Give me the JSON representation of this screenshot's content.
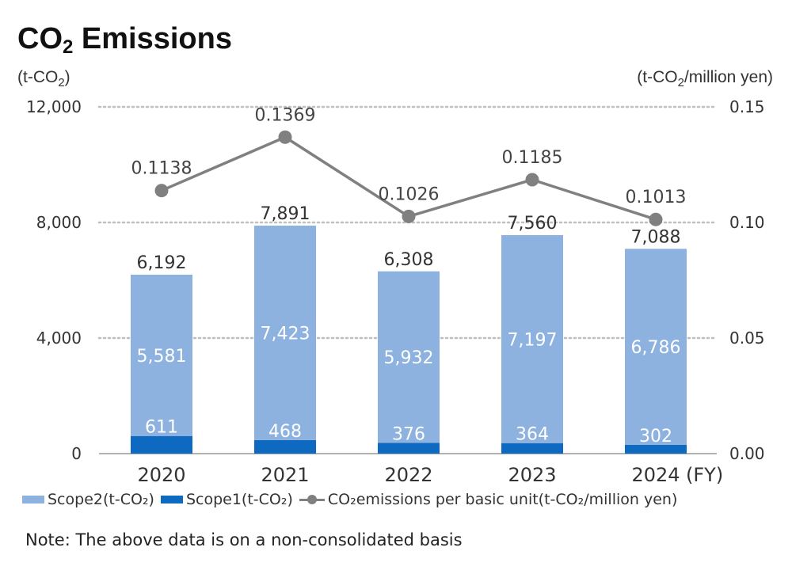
{
  "title": {
    "prefix": "CO",
    "sub": "2",
    "suffix": " Emissions"
  },
  "units": {
    "left": {
      "prefix": "(t-CO",
      "sub": "2",
      "suffix": ")"
    },
    "right": {
      "prefix": "(t-CO",
      "sub": "2",
      "suffix": "/million yen)"
    }
  },
  "legend": {
    "scope2": "Scope2(t-CO₂)",
    "scope1": "Scope1(t-CO₂)",
    "intensity": "CO₂emissions per basic unit(t-CO₂/million yen)"
  },
  "note": "Note: The above data is on a non-consolidated basis",
  "colors": {
    "scope2": "#8DB2E0",
    "scope1": "#0E6AC0",
    "line": "#808080",
    "grid": "#BFBFBF"
  },
  "chart_data": {
    "type": "bar",
    "stacked": true,
    "categories": [
      "2020",
      "2021",
      "2022",
      "2023",
      "2024"
    ],
    "x_unit_label": "(FY)",
    "series": [
      {
        "name": "Scope1(t-CO₂)",
        "values": [
          611,
          468,
          376,
          364,
          302
        ],
        "axis": "left"
      },
      {
        "name": "Scope2(t-CO₂)",
        "values": [
          5581,
          7423,
          5932,
          7197,
          6786
        ],
        "axis": "left"
      },
      {
        "name": "CO₂emissions per basic unit(t-CO₂/million yen)",
        "type": "line",
        "values": [
          0.1138,
          0.1369,
          0.1026,
          0.1185,
          0.1013
        ],
        "axis": "right",
        "labels": [
          "0.1138",
          "0.1369",
          "0.1026",
          "0.1185",
          "0.1013"
        ]
      }
    ],
    "totals": [
      6192,
      7891,
      6308,
      7560,
      7088
    ],
    "total_labels": [
      "6,192",
      "7,891",
      "6,308",
      "7,560",
      "7,088"
    ],
    "scope1_labels": [
      "611",
      "468",
      "376",
      "364",
      "302"
    ],
    "scope2_labels": [
      "5,581",
      "7,423",
      "5,932",
      "7,197",
      "6,786"
    ],
    "y_left": {
      "lim": [
        0,
        12000
      ],
      "ticks": [
        0,
        4000,
        8000,
        12000
      ],
      "tick_labels": [
        "0",
        "4,000",
        "8,000",
        "12,000"
      ]
    },
    "y_right": {
      "lim": [
        0,
        0.15
      ],
      "ticks": [
        0,
        0.05,
        0.1,
        0.15
      ],
      "tick_labels": [
        "0.00",
        "0.05",
        "0.10",
        "0.15"
      ]
    },
    "grid": true,
    "legend_position": "bottom"
  }
}
